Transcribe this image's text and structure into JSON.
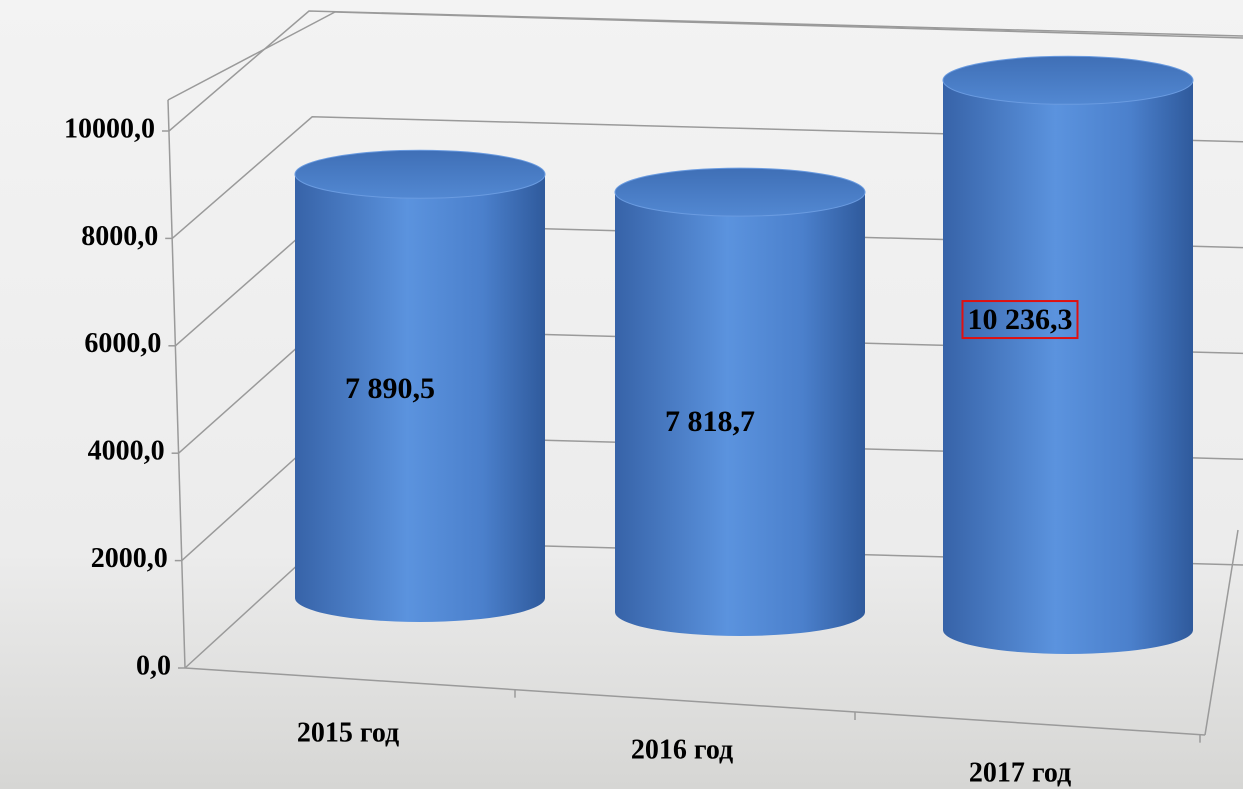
{
  "chart_data": {
    "type": "cylinder-bar",
    "categories": [
      "2015 год",
      "2016 год",
      "2017 год"
    ],
    "values": [
      7890.5,
      7818.7,
      10236.3
    ],
    "value_labels": [
      "7 890,5",
      "7 818,7",
      "10 236,3"
    ],
    "color": "#4a7fcb",
    "ylim": [
      0,
      12000
    ],
    "yticks": [
      {
        "value": 0,
        "label": "0,0"
      },
      {
        "value": 2000,
        "label": "2000,0"
      },
      {
        "value": 4000,
        "label": "4000,0"
      },
      {
        "value": 6000,
        "label": "6000,0"
      },
      {
        "value": 8000,
        "label": "8000,0"
      },
      {
        "value": 10000,
        "label": "10000,0"
      }
    ],
    "grid": true
  }
}
